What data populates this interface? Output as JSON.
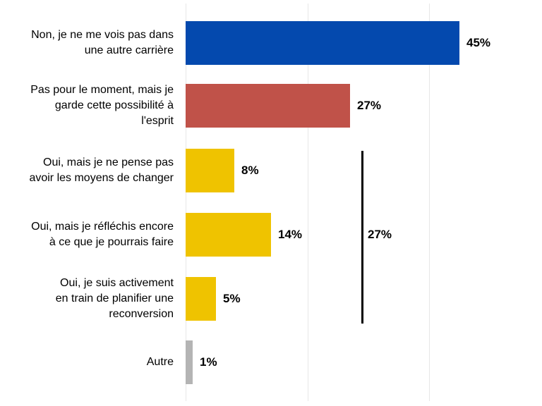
{
  "chart_data": {
    "type": "bar",
    "orientation": "horizontal",
    "title": "",
    "xlabel": "",
    "ylabel": "",
    "categories": [
      "Non, je ne me vois pas dans\nune autre carrière",
      "Pas pour le moment, mais je\ngarde cette possibilité à\nl'esprit",
      "Oui, mais je ne pense pas\navoir les moyens de changer",
      "Oui, mais je réfléchis encore\nà ce que je pourrais faire",
      "Oui, je suis activement\nen train de planifier une\nreconversion",
      "Autre"
    ],
    "values": [
      45,
      27,
      8,
      14,
      5,
      1
    ],
    "value_labels": [
      "45%",
      "27%",
      "8%",
      "14%",
      "5%",
      "1%"
    ],
    "bar_colors": [
      "#0449ae",
      "#c05249",
      "#efc300",
      "#efc300",
      "#efc300",
      "#b4b4b4"
    ],
    "xlim": [
      0,
      58.5
    ],
    "gridline_values": [
      0,
      20,
      40
    ],
    "grid": true,
    "legend": "none",
    "annotation": {
      "label": "27%",
      "grouped_category_indices": [
        2,
        3,
        4
      ]
    },
    "colors": {
      "background": "#ffffff",
      "gridline": "#e7e7e7",
      "text": "#000000",
      "bracket": "#000000"
    }
  }
}
